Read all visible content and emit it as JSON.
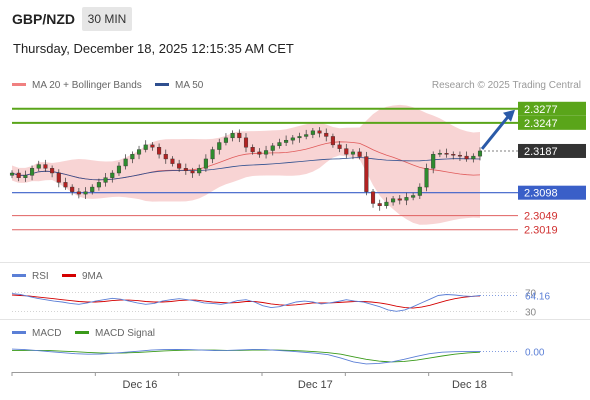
{
  "header": {
    "symbol": "GBP/NZD",
    "timeframe": "30 MIN",
    "datetime": "Thursday, December 18, 2025 12:15:35 AM CET",
    "credit": "Research © 2025 Trading Central"
  },
  "legends": {
    "main": [
      {
        "label": "MA 20 + Bollinger Bands",
        "color": "#f08080"
      },
      {
        "label": "MA 50",
        "color": "#2f4f8f"
      }
    ],
    "rsi": [
      {
        "label": "RSI",
        "color": "#5b7fd6"
      },
      {
        "label": "9MA",
        "color": "#d40000"
      }
    ],
    "macd": [
      {
        "label": "MACD",
        "color": "#5b7fd6"
      },
      {
        "label": "MACD Signal",
        "color": "#3a9a1a"
      }
    ]
  },
  "colors": {
    "resistance": "#5aa51a",
    "support": "#3a5fc8",
    "support_red": "#e06060",
    "candle_up": "#2e8b2e",
    "candle_down": "#b22222",
    "band_fill": "#f6c6c6",
    "arrow": "#2a5aa8",
    "current_label_bg": "#333333"
  },
  "chart_data": [
    {
      "type": "candlestick",
      "title": "GBP/NZD",
      "x_tick_labels": [
        "Dec 16",
        "Dec 17",
        "Dec 18"
      ],
      "ylim": [
        2.298,
        2.33
      ],
      "levels": [
        {
          "value": "2.3277",
          "kind": "resistance"
        },
        {
          "value": "2.3247",
          "kind": "resistance"
        },
        {
          "value": "2.3187",
          "kind": "current"
        },
        {
          "value": "2.3098",
          "kind": "pivot"
        },
        {
          "value": "2.3049",
          "kind": "support"
        },
        {
          "value": "2.3019",
          "kind": "support"
        }
      ],
      "close_series": [
        2.314,
        2.313,
        2.3135,
        2.315,
        2.3158,
        2.315,
        2.314,
        2.312,
        2.311,
        2.31,
        2.3095,
        2.31,
        2.311,
        2.312,
        2.313,
        2.314,
        2.3155,
        2.317,
        2.318,
        2.319,
        2.32,
        2.3195,
        2.318,
        2.317,
        2.316,
        2.315,
        2.3145,
        2.314,
        2.315,
        2.317,
        2.319,
        2.3205,
        2.3215,
        2.3225,
        2.3215,
        2.3195,
        2.3185,
        2.318,
        2.3188,
        2.3198,
        2.3205,
        2.321,
        2.3215,
        2.3218,
        2.3222,
        2.323,
        2.3225,
        2.3218,
        2.32,
        2.3192,
        2.318,
        2.3185,
        2.3175,
        2.31,
        2.3075,
        2.307,
        2.3078,
        2.3085,
        2.3082,
        2.3088,
        2.3092,
        2.311,
        2.315,
        2.318,
        2.3182,
        2.318,
        2.3178,
        2.3176,
        2.317,
        2.3176,
        2.3187
      ]
    },
    {
      "type": "line",
      "title": "RSI",
      "value_label": "64.16",
      "tick_labels": [
        "70",
        "30"
      ],
      "ylim": [
        20,
        80
      ],
      "series": [
        {
          "name": "RSI",
          "values": [
            68,
            66,
            62,
            58,
            55,
            52,
            50,
            47,
            45,
            48,
            52,
            55,
            58,
            56,
            52,
            48,
            45,
            47,
            52,
            55,
            57,
            55,
            52,
            48,
            47,
            45,
            48,
            53,
            55,
            50,
            42,
            38,
            40,
            45,
            50,
            52,
            50,
            46,
            48,
            51,
            55,
            52,
            50,
            45,
            40,
            33,
            30,
            33,
            40,
            48,
            56,
            64,
            66,
            65,
            63,
            62,
            64
          ]
        },
        {
          "name": "9MA",
          "values": [
            65,
            64,
            63,
            61,
            59,
            57,
            55,
            53,
            51,
            50,
            50,
            51,
            53,
            54,
            54,
            53,
            51,
            50,
            50,
            51,
            53,
            54,
            54,
            52,
            50,
            49,
            48,
            49,
            51,
            51,
            49,
            46,
            44,
            43,
            44,
            46,
            48,
            48,
            48,
            49,
            50,
            51,
            51,
            50,
            48,
            45,
            41,
            38,
            37,
            39,
            43,
            48,
            53,
            57,
            60,
            62,
            63
          ]
        }
      ]
    },
    {
      "type": "line",
      "title": "MACD",
      "value_label": "0.00",
      "ylim": [
        -0.006,
        0.003
      ],
      "series": [
        {
          "name": "MACD",
          "values": [
            0.001,
            0.0008,
            0.0004,
            0.0,
            -0.0004,
            -0.0008,
            -0.001,
            -0.0009,
            -0.0006,
            -0.0002,
            0.0002,
            0.0006,
            0.0008,
            0.0009,
            0.0008,
            0.0006,
            0.0004,
            0.0005,
            0.0007,
            0.0009,
            0.0008,
            0.0005,
            0.0002,
            -0.0002,
            -0.0006,
            -0.0012,
            -0.0025,
            -0.004,
            -0.0048,
            -0.0046,
            -0.004,
            -0.003,
            -0.0018,
            -0.0008,
            -0.0002,
            0.0,
            0.0001,
            0.0001
          ]
        },
        {
          "name": "MACD Signal",
          "values": [
            0.0004,
            0.0005,
            0.0005,
            0.0004,
            0.0002,
            0.0,
            -0.0003,
            -0.0005,
            -0.0006,
            -0.0005,
            -0.0003,
            0.0,
            0.0003,
            0.0005,
            0.0006,
            0.0006,
            0.0006,
            0.0005,
            0.0005,
            0.0006,
            0.0007,
            0.0006,
            0.0005,
            0.0003,
            0.0,
            -0.0004,
            -0.001,
            -0.002,
            -0.003,
            -0.0037,
            -0.004,
            -0.0038,
            -0.0033,
            -0.0025,
            -0.0017,
            -0.001,
            -0.0005,
            -0.0002
          ]
        }
      ]
    }
  ]
}
